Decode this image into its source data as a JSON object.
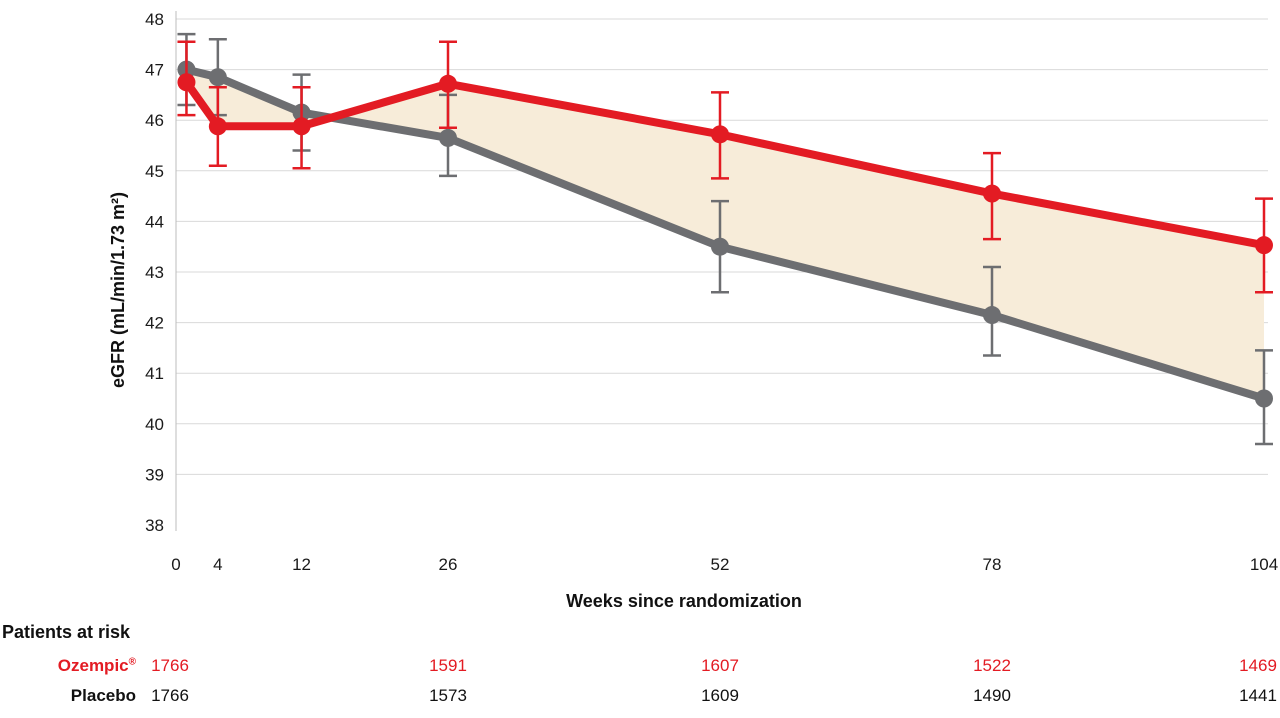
{
  "chart_data": {
    "type": "line",
    "title": "",
    "xlabel": "Weeks since randomization",
    "ylabel": "eGFR (mL/min/1.73 m²)",
    "xlim": [
      0,
      104
    ],
    "ylim": [
      38,
      48
    ],
    "x_ticks": [
      0,
      4,
      12,
      26,
      52,
      78,
      104
    ],
    "y_ticks": [
      38,
      39,
      40,
      41,
      42,
      43,
      44,
      45,
      46,
      47,
      48
    ],
    "grid": "horizontal",
    "shaded_region_between_series": true,
    "colors": {
      "ozempic": "#e31b23",
      "placebo": "#6d6e71",
      "shade": "#f7ecd9",
      "grid": "#d9d9d9"
    },
    "series": [
      {
        "key": "placebo",
        "x": [
          1,
          4,
          12,
          26,
          52,
          78,
          104
        ],
        "y": [
          47.0,
          46.85,
          46.15,
          45.65,
          43.5,
          42.15,
          40.5
        ],
        "err_low": [
          46.3,
          46.1,
          45.4,
          44.9,
          42.6,
          41.35,
          39.6
        ],
        "err_high": [
          47.7,
          47.6,
          46.9,
          46.5,
          44.4,
          43.1,
          41.45
        ]
      },
      {
        "key": "ozempic",
        "x": [
          1,
          4,
          12,
          26,
          52,
          78,
          104
        ],
        "y": [
          46.75,
          45.88,
          45.88,
          46.72,
          45.72,
          44.55,
          43.53
        ],
        "err_low": [
          46.1,
          45.1,
          45.05,
          45.85,
          44.85,
          43.65,
          42.6
        ],
        "err_high": [
          47.55,
          46.65,
          46.65,
          47.55,
          46.55,
          45.35,
          44.45
        ]
      }
    ]
  },
  "risk_table": {
    "title": "Patients at risk",
    "rows": [
      {
        "label": "Ozempic",
        "label_sup": "®",
        "color": "#e31b23",
        "x": [
          0,
          26,
          52,
          78,
          104
        ],
        "values": [
          "1766",
          "1591",
          "1607",
          "1522",
          "1469"
        ]
      },
      {
        "label": "Placebo",
        "label_sup": "",
        "color": "#111111",
        "x": [
          0,
          26,
          52,
          78,
          104
        ],
        "values": [
          "1766",
          "1573",
          "1609",
          "1490",
          "1441"
        ]
      }
    ]
  }
}
